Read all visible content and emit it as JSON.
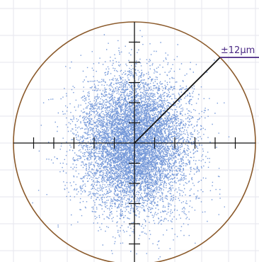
{
  "chart_data": {
    "type": "scatter",
    "title": "",
    "xlabel": "",
    "ylabel": "",
    "xlim": [
      -12,
      12
    ],
    "ylim": [
      -12,
      12
    ],
    "grid": true,
    "circle_radius": 12,
    "radius_label": "±12μm",
    "radius_angle_deg": 45,
    "axis_ticks": [
      -10,
      -8,
      -6,
      -4,
      -2,
      2,
      4,
      6,
      8,
      10
    ],
    "series": [
      {
        "mean": [
          0,
          0
        ],
        "std": [
          2.7,
          3.3
        ],
        "point_count": 9000,
        "seed": 7
      }
    ]
  },
  "colors": {
    "points": "#4a78cc",
    "circle": "#8b5a2b",
    "axes": "#111111",
    "radius_line": "#111111",
    "label_underline": "#4b2a85",
    "label_text": "#4b2a85",
    "grid": "#e6e6ee"
  }
}
